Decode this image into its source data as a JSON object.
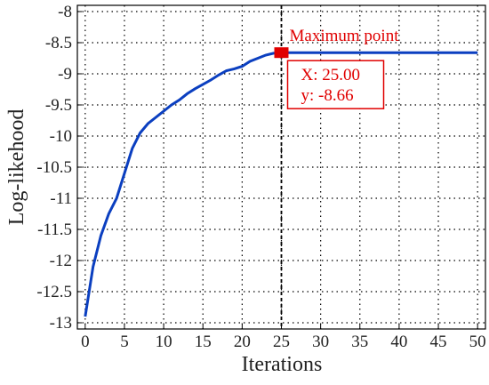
{
  "chart_data": {
    "type": "line",
    "xlabel": "Iterations",
    "ylabel": "Log-likehood",
    "x": [
      0,
      1,
      2,
      3,
      4,
      5,
      6,
      7,
      8,
      9,
      10,
      11,
      12,
      13,
      14,
      15,
      16,
      17,
      18,
      19,
      20,
      21,
      22,
      23,
      24,
      25,
      26,
      27,
      28,
      29,
      30,
      31,
      32,
      33,
      34,
      35,
      36,
      37,
      38,
      39,
      40,
      41,
      42,
      43,
      44,
      45,
      46,
      47,
      48,
      49,
      50
    ],
    "series": [
      {
        "color": "#0b3fc0",
        "values": [
          -12.9,
          -12.1,
          -11.6,
          -11.25,
          -11.0,
          -10.6,
          -10.2,
          -9.95,
          -9.8,
          -9.7,
          -9.6,
          -9.5,
          -9.42,
          -9.32,
          -9.24,
          -9.17,
          -9.1,
          -9.02,
          -8.95,
          -8.92,
          -8.88,
          -8.8,
          -8.75,
          -8.7,
          -8.67,
          -8.66,
          -8.66,
          -8.66,
          -8.66,
          -8.66,
          -8.66,
          -8.66,
          -8.66,
          -8.66,
          -8.66,
          -8.66,
          -8.66,
          -8.66,
          -8.66,
          -8.66,
          -8.66,
          -8.66,
          -8.66,
          -8.66,
          -8.66,
          -8.66,
          -8.66,
          -8.66,
          -8.66,
          -8.66,
          -8.66
        ]
      }
    ],
    "xlim": [
      -1,
      51
    ],
    "ylim": [
      -13.1,
      -7.9
    ],
    "xticks": [
      0,
      5,
      10,
      15,
      20,
      25,
      30,
      35,
      40,
      45,
      50
    ],
    "yticks": [
      -13,
      -12.5,
      -12,
      -11.5,
      -11,
      -10.5,
      -10,
      -9.5,
      -9,
      -8.5,
      -8
    ],
    "grid": true,
    "max_point": {
      "x": 25,
      "y": -8.66,
      "color": "#e00000",
      "title": "Maximum point",
      "x_label": "X: 25.00",
      "y_label": "y: -8.66"
    }
  }
}
